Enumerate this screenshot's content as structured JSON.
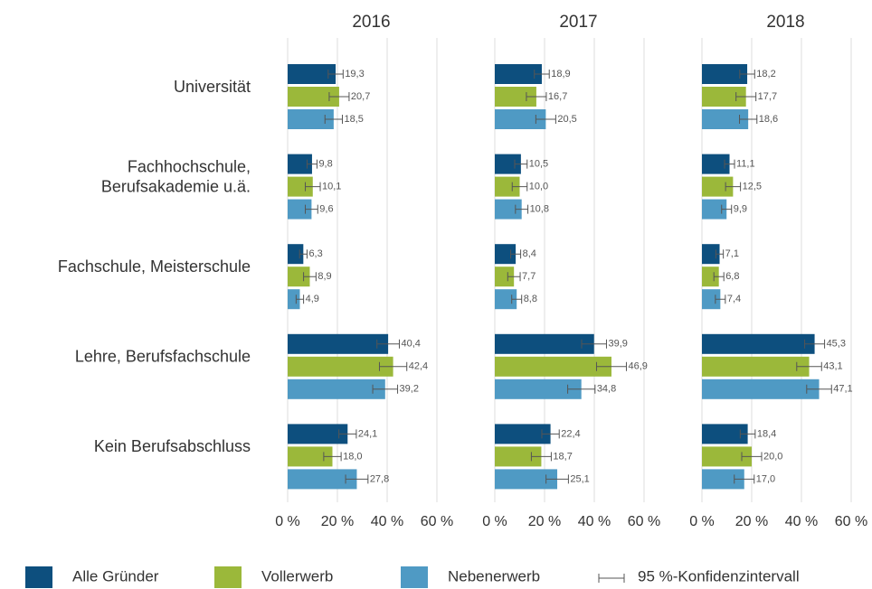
{
  "chart_data": {
    "type": "bar",
    "orientation": "horizontal",
    "categories": [
      "Universität",
      "Fachhochschule,\nBerufsakademie u.ä.",
      "Fachschule, Meisterschule",
      "Lehre, Berufsfachschule",
      "Kein Berufsabschluss"
    ],
    "series": [
      {
        "name": "Alle Gründer",
        "color": "#0d4f7e"
      },
      {
        "name": "Vollerwerb",
        "color": "#9bb83a"
      },
      {
        "name": "Nebenerwerb",
        "color": "#4f9ac4"
      }
    ],
    "ci_label": "95 %-Konfidenzintervall",
    "xlim": [
      0,
      60
    ],
    "xticks": [
      {
        "value": 0,
        "label": "0 %"
      },
      {
        "value": 20,
        "label": "20 %"
      },
      {
        "value": 40,
        "label": "40 %"
      },
      {
        "value": 60,
        "label": "60 %"
      }
    ],
    "grid": true,
    "panels": [
      {
        "title": "2016",
        "series": [
          {
            "values": [
              19.3,
              9.8,
              6.3,
              40.4,
              24.1
            ],
            "value_labels": [
              "19,3",
              "9,8",
              "6,3",
              "40,4",
              "24,1"
            ],
            "errors": [
              3,
              2,
              1.5,
              4.5,
              3.5
            ]
          },
          {
            "values": [
              20.7,
              10.1,
              8.9,
              42.4,
              18.0
            ],
            "value_labels": [
              "20,7",
              "10,1",
              "8,9",
              "42,4",
              "18,0"
            ],
            "errors": [
              4,
              3,
              2.5,
              5.5,
              3.5
            ]
          },
          {
            "values": [
              18.5,
              9.6,
              4.9,
              39.2,
              27.8
            ],
            "value_labels": [
              "18,5",
              "9,6",
              "4,9",
              "39,2",
              "27,8"
            ],
            "errors": [
              3.5,
              2.5,
              1.5,
              5,
              4.5
            ]
          }
        ]
      },
      {
        "title": "2017",
        "series": [
          {
            "values": [
              18.9,
              10.5,
              8.4,
              39.9,
              22.4
            ],
            "value_labels": [
              "18,9",
              "10,5",
              "8,4",
              "39,9",
              "22,4"
            ],
            "errors": [
              3,
              2.5,
              2,
              5,
              3.5
            ]
          },
          {
            "values": [
              16.7,
              10.0,
              7.7,
              46.9,
              18.7
            ],
            "value_labels": [
              "16,7",
              "10,0",
              "7,7",
              "46,9",
              "18,7"
            ],
            "errors": [
              4,
              3,
              2.5,
              6,
              4
            ]
          },
          {
            "values": [
              20.5,
              10.8,
              8.8,
              34.8,
              25.1
            ],
            "value_labels": [
              "20,5",
              "10,8",
              "8,8",
              "34,8",
              "25,1"
            ],
            "errors": [
              4,
              2.5,
              2,
              5.5,
              4.5
            ]
          }
        ]
      },
      {
        "title": "2018",
        "series": [
          {
            "values": [
              18.2,
              11.1,
              7.1,
              45.3,
              18.4
            ],
            "value_labels": [
              "18,2",
              "11,1",
              "7,1",
              "45,3",
              "18,4"
            ],
            "errors": [
              3,
              2,
              1.5,
              4,
              3
            ]
          },
          {
            "values": [
              17.7,
              12.5,
              6.8,
              43.1,
              20.0
            ],
            "value_labels": [
              "17,7",
              "12,5",
              "6,8",
              "43,1",
              "20,0"
            ],
            "errors": [
              4,
              3,
              2,
              5,
              4
            ]
          },
          {
            "values": [
              18.6,
              9.9,
              7.4,
              47.1,
              17.0
            ],
            "value_labels": [
              "18,6",
              "9,9",
              "7,4",
              "47,1",
              "17,0"
            ],
            "errors": [
              3.5,
              2,
              2,
              5,
              4
            ]
          }
        ]
      }
    ]
  }
}
